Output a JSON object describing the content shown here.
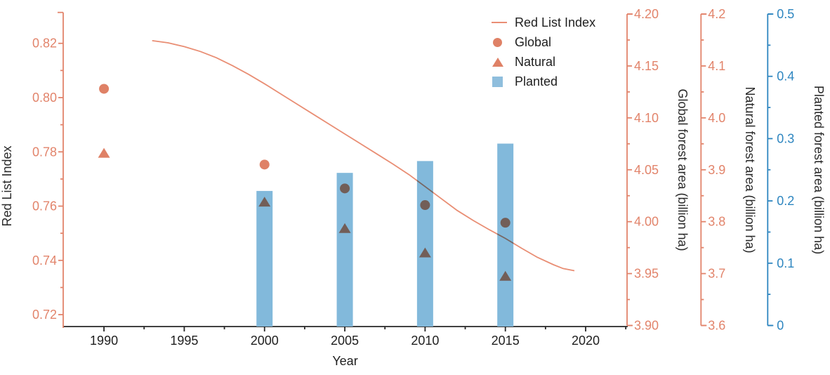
{
  "chart_data": {
    "type": "combo",
    "title": "",
    "xlabel": "Year",
    "x_range": [
      1987.46,
      2022.58
    ],
    "x_major_ticks": [
      1990,
      1995,
      2000,
      2005,
      2010,
      2015,
      2020
    ],
    "x_minor_ticks": [
      1992.5,
      1997.5,
      2002.5,
      2007.5,
      2012.5,
      2017.5,
      2022.5
    ],
    "grid": "off",
    "legend_position": "upper-right-inside",
    "axes": [
      {
        "id": "rli",
        "side": "left",
        "title": "Red List Index",
        "range": [
          0.716,
          0.8308
        ],
        "tick_values": [
          0.72,
          0.74,
          0.76,
          0.78,
          0.8,
          0.82
        ],
        "tick_labels": [
          "0.72",
          "0.74",
          "0.76",
          "0.78",
          "0.80",
          "0.82"
        ],
        "minor_ticks": [
          0.73,
          0.75,
          0.77,
          0.79,
          0.81
        ],
        "color": "#E2846B",
        "label_color": "#E2846B",
        "title_color": "#2b2b2b"
      },
      {
        "id": "global",
        "side": "right",
        "title": "Global forest area (billion ha)",
        "range": [
          3.9,
          4.2
        ],
        "tick_values": [
          3.9,
          3.95,
          4.0,
          4.05,
          4.1,
          4.15,
          4.2
        ],
        "tick_labels": [
          "3.90",
          "3.95",
          "4.00",
          "4.05",
          "4.10",
          "4.15",
          "4.20"
        ],
        "minor_ticks": [
          3.925,
          3.975,
          4.025,
          4.075,
          4.125,
          4.175
        ],
        "color": "#E2846B",
        "label_color": "#E2846B",
        "title_color": "#2b2b2b"
      },
      {
        "id": "natural",
        "side": "right",
        "title": "Natural forest area (billion ha)",
        "range": [
          3.6,
          4.2
        ],
        "tick_values": [
          3.6,
          3.7,
          3.8,
          3.9,
          4.0,
          4.1,
          4.2
        ],
        "tick_labels": [
          "3.6",
          "3.7",
          "3.8",
          "3.9",
          "4.0",
          "4.1",
          "4.2"
        ],
        "minor_ticks": [
          3.65,
          3.75,
          3.85,
          3.95,
          4.05,
          4.15
        ],
        "color": "#E2846B",
        "label_color": "#E2846B",
        "title_color": "#2b2b2b"
      },
      {
        "id": "planted",
        "side": "right",
        "title": "Planted forest area (billion ha)",
        "range": [
          0,
          0.5
        ],
        "tick_values": [
          0,
          0.1,
          0.2,
          0.3,
          0.4,
          0.5
        ],
        "tick_labels": [
          "0",
          "0.1",
          "0.2",
          "0.3",
          "0.4",
          "0.5"
        ],
        "minor_ticks": [
          0.05,
          0.15,
          0.25,
          0.35,
          0.45
        ],
        "color": "#2E86C0",
        "label_color": "#2E86C0",
        "title_color": "#2b2b2b"
      }
    ],
    "series": [
      {
        "name": "Red List Index",
        "type": "line",
        "axis": "rli",
        "color": "#E98E74",
        "x": [
          1993,
          1994,
          1995,
          1996,
          1997,
          1998,
          1999,
          2000,
          2001,
          2002,
          2003,
          2004,
          2005,
          2006,
          2007,
          2008,
          2009,
          2010,
          2011,
          2012,
          2013,
          2014,
          2015,
          2016,
          2017,
          2018,
          2018.6,
          2019.3
        ],
        "y": [
          0.821,
          0.8202,
          0.8188,
          0.817,
          0.8147,
          0.8118,
          0.8086,
          0.8051,
          0.8014,
          0.7977,
          0.794,
          0.7903,
          0.7866,
          0.7829,
          0.7792,
          0.7755,
          0.7716,
          0.7672,
          0.7628,
          0.7584,
          0.7547,
          0.7513,
          0.7481,
          0.7445,
          0.7411,
          0.7384,
          0.737,
          0.7362
        ]
      },
      {
        "name": "Global",
        "type": "scatter",
        "marker": "circle",
        "axis": "global",
        "color": "#DF8166",
        "x": [
          1990,
          2000,
          2005,
          2010,
          2015
        ],
        "y": [
          4.128,
          4.055,
          4.032,
          4.016,
          3.999
        ]
      },
      {
        "name": "Natural",
        "type": "scatter",
        "marker": "triangle",
        "axis": "natural",
        "color": "#DF8166",
        "x": [
          1990,
          2000,
          2005,
          2010,
          2015
        ],
        "y": [
          3.932,
          3.838,
          3.787,
          3.74,
          3.695
        ]
      },
      {
        "name": "Planted",
        "type": "bar",
        "axis": "planted",
        "color": "#82B9DB",
        "x": [
          2000,
          2005,
          2010,
          2015
        ],
        "y": [
          0.216,
          0.245,
          0.264,
          0.292
        ]
      }
    ],
    "x_axis_color": "#262626",
    "x_label_color": "#1f1f1f"
  },
  "legend": {
    "items": [
      {
        "label": "Red List Index",
        "marker": "line"
      },
      {
        "label": "Global",
        "marker": "circle"
      },
      {
        "label": "Natural",
        "marker": "triangle"
      },
      {
        "label": "Planted",
        "marker": "square"
      }
    ]
  }
}
